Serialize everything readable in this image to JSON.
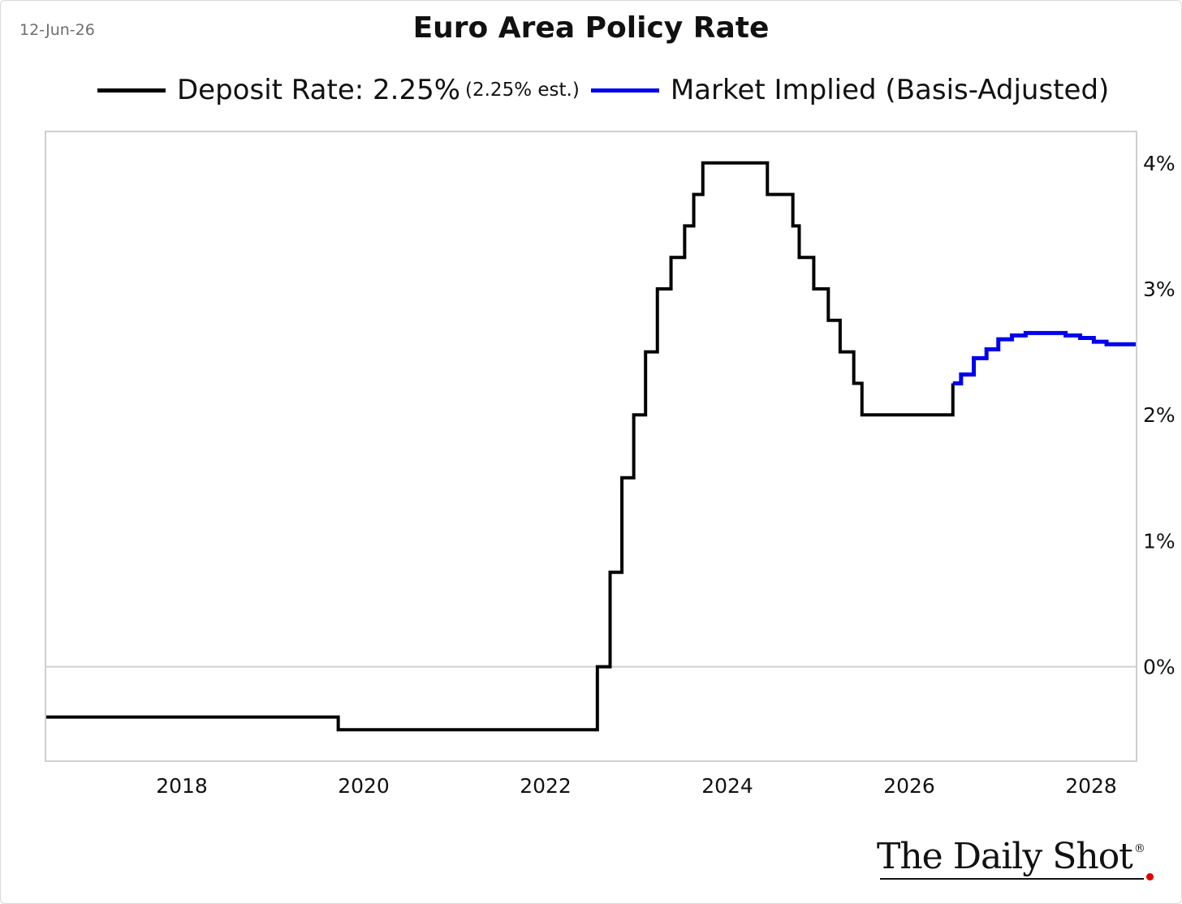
{
  "date_label": "12-Jun-26",
  "logo": {
    "text": "The Daily Shot",
    "mark": "®"
  },
  "colors": {
    "deposit": "#000000",
    "market": "#0000ee",
    "grid": "#d0d0d0",
    "border": "#cfcfcf"
  },
  "chart_data": {
    "type": "line",
    "step": true,
    "title": "Euro Area Policy Rate",
    "legend": {
      "placement": "top",
      "entries": [
        {
          "label": "Deposit Rate: 2.25%",
          "sublabel": "(2.25% est.)",
          "color": "#000000"
        },
        {
          "label": "Market Implied (Basis-Adjusted)",
          "color": "#0000ee"
        }
      ]
    },
    "xlabel": "",
    "ylabel": "",
    "x_unit": "year",
    "xlim": [
      2016.5,
      2028.5
    ],
    "ylim": [
      -0.75,
      4.25
    ],
    "xticks": [
      "2018",
      "2020",
      "2022",
      "2024",
      "2026",
      "2028"
    ],
    "yticks": [
      "0%",
      "1%",
      "2%",
      "3%",
      "4%"
    ],
    "y_axis_side": "right",
    "gridlines": [
      0
    ],
    "series": [
      {
        "name": "Deposit Rate",
        "color": "#000000",
        "points": [
          [
            2016.5,
            -0.4
          ],
          [
            2019.72,
            -0.5
          ],
          [
            2022.57,
            0.0
          ],
          [
            2022.71,
            0.75
          ],
          [
            2022.84,
            1.5
          ],
          [
            2022.97,
            2.0
          ],
          [
            2023.1,
            2.5
          ],
          [
            2023.23,
            3.0
          ],
          [
            2023.38,
            3.25
          ],
          [
            2023.53,
            3.5
          ],
          [
            2023.63,
            3.75
          ],
          [
            2023.73,
            4.0
          ],
          [
            2024.44,
            3.75
          ],
          [
            2024.72,
            3.5
          ],
          [
            2024.79,
            3.25
          ],
          [
            2024.95,
            3.0
          ],
          [
            2025.11,
            2.75
          ],
          [
            2025.24,
            2.5
          ],
          [
            2025.39,
            2.25
          ],
          [
            2025.48,
            2.0
          ],
          [
            2026.48,
            2.25
          ]
        ]
      },
      {
        "name": "Market Implied (Basis-Adjusted)",
        "color": "#0000ee",
        "points": [
          [
            2026.48,
            2.25
          ],
          [
            2026.57,
            2.32
          ],
          [
            2026.71,
            2.45
          ],
          [
            2026.85,
            2.52
          ],
          [
            2026.98,
            2.6
          ],
          [
            2027.13,
            2.63
          ],
          [
            2027.28,
            2.65
          ],
          [
            2027.55,
            2.65
          ],
          [
            2027.72,
            2.63
          ],
          [
            2027.88,
            2.61
          ],
          [
            2028.03,
            2.58
          ],
          [
            2028.17,
            2.56
          ],
          [
            2028.5,
            2.56
          ]
        ]
      }
    ]
  }
}
